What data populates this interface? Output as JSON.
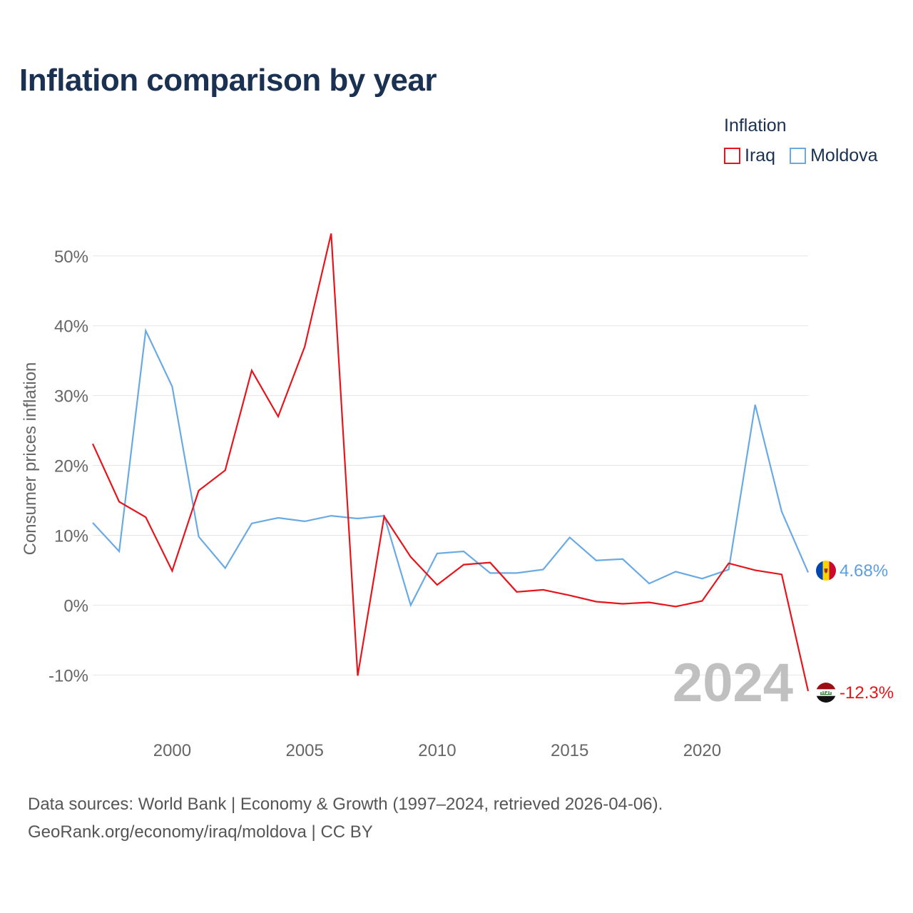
{
  "chart_data": {
    "type": "line",
    "title": "Inflation comparison by year",
    "legend_title": "Inflation",
    "ylabel": "Consumer prices inflation",
    "xlabel": "",
    "xlim": [
      1997,
      2024
    ],
    "ylim": [
      -16.5,
      56
    ],
    "x_ticks": [
      2000,
      2005,
      2010,
      2015,
      2020
    ],
    "y_ticks": [
      -10,
      0,
      10,
      20,
      30,
      40,
      50
    ],
    "y_tick_labels": [
      "-10%",
      "0%",
      "10%",
      "20%",
      "30%",
      "40%",
      "50%"
    ],
    "watermark_year": "2024",
    "x": [
      1997,
      1998,
      1999,
      2000,
      2001,
      2002,
      2003,
      2004,
      2005,
      2006,
      2007,
      2008,
      2009,
      2010,
      2011,
      2012,
      2013,
      2014,
      2015,
      2016,
      2017,
      2018,
      2019,
      2020,
      2021,
      2022,
      2023,
      2024
    ],
    "series": [
      {
        "name": "Iraq",
        "color": "#e8141c",
        "end_label": "-12.3%",
        "flag": "iraq-flag",
        "values": [
          23.1,
          14.8,
          12.6,
          4.9,
          16.4,
          19.3,
          33.6,
          27.0,
          37.0,
          53.2,
          -10.1,
          12.7,
          6.9,
          2.9,
          5.8,
          6.1,
          1.9,
          2.2,
          1.4,
          0.5,
          0.2,
          0.4,
          -0.2,
          0.6,
          6.0,
          5.0,
          4.4,
          -12.3
        ]
      },
      {
        "name": "Moldova",
        "color": "#6aaae4",
        "end_label": "4.68%",
        "flag": "moldova-flag",
        "values": [
          11.8,
          7.7,
          39.3,
          31.3,
          9.8,
          5.3,
          11.7,
          12.5,
          12.0,
          12.8,
          12.4,
          12.8,
          0.0,
          7.4,
          7.7,
          4.6,
          4.6,
          5.1,
          9.7,
          6.4,
          6.6,
          3.1,
          4.8,
          3.8,
          5.1,
          28.7,
          13.4,
          4.68
        ]
      }
    ]
  },
  "footer": {
    "line1": "Data sources: World Bank | Economy & Growth (1997–2024, retrieved 2026-04-06).",
    "line2": "GeoRank.org/economy/iraq/moldova | CC BY"
  }
}
